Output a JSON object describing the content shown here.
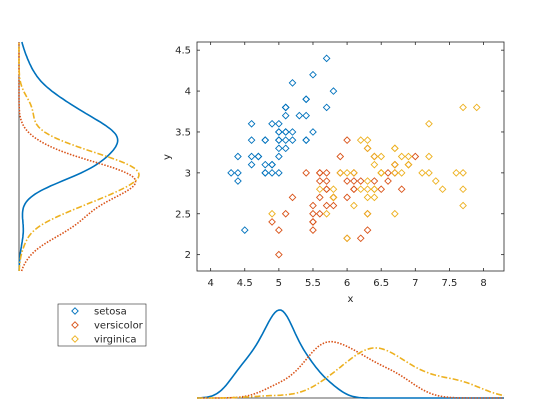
{
  "chart_data": {
    "type": "scatter",
    "xlabel": "x",
    "ylabel": "y",
    "xlim": [
      3.8,
      8.3
    ],
    "ylim": [
      1.8,
      4.6
    ],
    "xticks": [
      "4",
      "4.5",
      "5",
      "5.5",
      "6",
      "6.5",
      "7",
      "7.5",
      "8"
    ],
    "yticks": [
      "2",
      "2.5",
      "3",
      "3.5",
      "4",
      "4.5"
    ],
    "marker": "diamond",
    "marginals": "kernel density estimates above/beside each axis (x below, y left)",
    "series": [
      {
        "name": "setosa",
        "color": "#0072BD",
        "linestyle": "solid",
        "x": [
          5.1,
          4.9,
          4.7,
          4.6,
          5.0,
          5.4,
          4.6,
          5.0,
          4.4,
          4.9,
          5.4,
          4.8,
          4.8,
          4.3,
          5.8,
          5.7,
          5.4,
          5.1,
          5.7,
          5.1,
          5.4,
          5.1,
          4.6,
          5.1,
          4.8,
          5.0,
          5.0,
          5.2,
          5.2,
          4.7,
          4.8,
          5.4,
          5.2,
          5.5,
          4.9,
          5.0,
          5.5,
          4.9,
          4.4,
          5.1,
          5.0,
          4.5,
          4.4,
          5.0,
          5.1,
          4.8,
          5.1,
          4.6,
          5.3,
          5.0
        ],
        "y": [
          3.5,
          3.0,
          3.2,
          3.1,
          3.6,
          3.9,
          3.4,
          3.4,
          2.9,
          3.1,
          3.7,
          3.4,
          3.0,
          3.0,
          4.0,
          4.4,
          3.9,
          3.5,
          3.8,
          3.8,
          3.4,
          3.7,
          3.6,
          3.3,
          3.4,
          3.0,
          3.4,
          3.5,
          3.4,
          3.2,
          3.1,
          3.4,
          4.1,
          4.2,
          3.1,
          3.2,
          3.5,
          3.6,
          3.0,
          3.4,
          3.5,
          2.3,
          3.2,
          3.5,
          3.8,
          3.0,
          3.8,
          3.2,
          3.7,
          3.3
        ]
      },
      {
        "name": "versicolor",
        "color": "#D95319",
        "linestyle": "dotted",
        "x": [
          7.0,
          6.4,
          6.9,
          5.5,
          6.5,
          5.7,
          6.3,
          4.9,
          6.6,
          5.2,
          5.0,
          5.9,
          6.0,
          6.1,
          5.6,
          6.7,
          5.6,
          5.8,
          6.2,
          5.6,
          5.9,
          6.1,
          6.3,
          6.1,
          6.4,
          6.6,
          6.8,
          6.7,
          6.0,
          5.7,
          5.5,
          5.5,
          5.8,
          6.0,
          5.4,
          6.0,
          6.7,
          6.3,
          5.6,
          5.5,
          5.5,
          6.1,
          5.8,
          5.0,
          5.6,
          5.7,
          5.7,
          6.2,
          5.1,
          5.7
        ],
        "y": [
          3.2,
          3.2,
          3.1,
          2.3,
          2.8,
          2.8,
          3.3,
          2.4,
          2.9,
          2.7,
          2.0,
          3.0,
          2.2,
          2.9,
          2.9,
          3.1,
          3.0,
          2.7,
          2.2,
          2.5,
          3.2,
          2.8,
          2.5,
          2.8,
          2.9,
          3.0,
          2.8,
          3.0,
          2.9,
          2.6,
          2.4,
          2.4,
          2.7,
          2.7,
          3.0,
          3.4,
          3.1,
          2.3,
          3.0,
          2.5,
          2.6,
          3.0,
          2.6,
          2.3,
          2.7,
          3.0,
          2.9,
          2.9,
          2.5,
          2.8
        ]
      },
      {
        "name": "virginica",
        "color": "#EDB120",
        "linestyle": "dashdot",
        "x": [
          6.3,
          5.8,
          7.1,
          6.3,
          6.5,
          7.6,
          4.9,
          7.3,
          6.7,
          7.2,
          6.5,
          6.4,
          6.8,
          5.7,
          5.8,
          6.4,
          6.5,
          7.7,
          7.7,
          6.0,
          6.9,
          5.6,
          7.7,
          6.3,
          6.7,
          7.2,
          6.2,
          6.1,
          6.4,
          7.2,
          7.4,
          7.9,
          6.4,
          6.3,
          6.1,
          7.7,
          6.3,
          6.4,
          6.0,
          6.9,
          6.7,
          6.9,
          5.8,
          6.8,
          6.7,
          6.7,
          6.3,
          6.5,
          6.2,
          5.9
        ],
        "y": [
          3.3,
          2.7,
          3.0,
          2.9,
          3.0,
          3.0,
          2.5,
          2.9,
          2.5,
          3.6,
          3.2,
          2.7,
          3.0,
          2.5,
          2.8,
          3.2,
          3.0,
          3.8,
          2.6,
          2.2,
          3.2,
          2.8,
          2.8,
          2.7,
          3.3,
          3.2,
          2.8,
          3.0,
          2.8,
          3.0,
          2.8,
          3.8,
          2.8,
          2.8,
          2.6,
          3.0,
          3.4,
          3.1,
          3.0,
          3.1,
          3.1,
          3.1,
          2.7,
          3.2,
          3.3,
          3.0,
          2.5,
          3.0,
          3.4,
          3.0
        ]
      }
    ],
    "legend_placement": "bottom-left"
  }
}
